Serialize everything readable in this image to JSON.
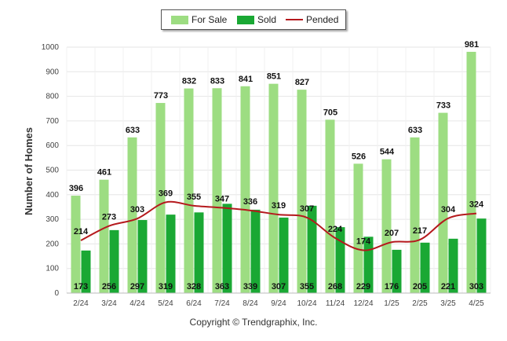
{
  "legend": {
    "for_sale": "For Sale",
    "sold": "Sold",
    "pended": "Pended"
  },
  "copyright": "Copyright © Trendgraphix, Inc.",
  "colors": {
    "for_sale": "#9ddd82",
    "sold": "#1aa834",
    "pended": "#b5191d",
    "grid": "#e6e6e6"
  },
  "chart_data": {
    "type": "bar",
    "title": "",
    "xlabel": "",
    "ylabel": "Number of Homes",
    "ylim": [
      0,
      1000
    ],
    "yticks": [
      0,
      100,
      200,
      300,
      400,
      500,
      600,
      700,
      800,
      900,
      1000
    ],
    "grid": true,
    "legend_position": "top-center",
    "categories": [
      "2/24",
      "3/24",
      "4/24",
      "5/24",
      "6/24",
      "7/24",
      "8/24",
      "9/24",
      "10/24",
      "11/24",
      "12/24",
      "1/25",
      "2/25",
      "3/25",
      "4/25"
    ],
    "series": [
      {
        "name": "For Sale",
        "type": "bar",
        "values": [
          396,
          461,
          633,
          773,
          832,
          833,
          841,
          851,
          827,
          705,
          526,
          544,
          633,
          733,
          981
        ]
      },
      {
        "name": "Sold",
        "type": "bar",
        "values": [
          173,
          256,
          297,
          319,
          328,
          363,
          339,
          307,
          355,
          268,
          229,
          176,
          205,
          221,
          303
        ]
      },
      {
        "name": "Pended",
        "type": "line",
        "values": [
          214,
          273,
          303,
          369,
          355,
          347,
          336,
          319,
          307,
          224,
          174,
          207,
          217,
          304,
          324
        ]
      }
    ]
  }
}
